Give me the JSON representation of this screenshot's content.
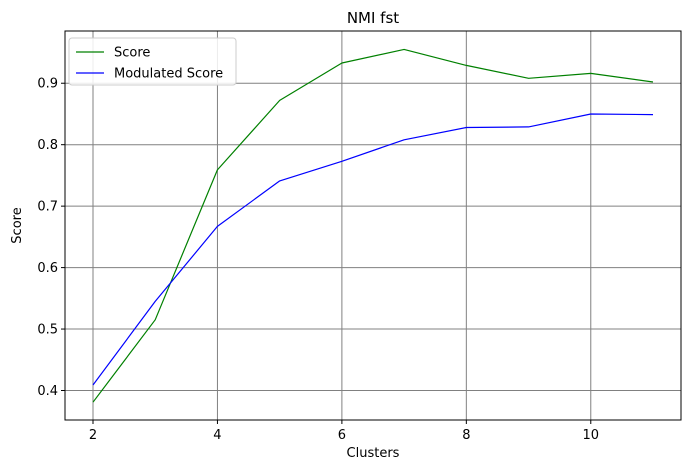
{
  "chart_data": {
    "type": "line",
    "title": "NMI fst",
    "xlabel": "Clusters",
    "ylabel": "Score",
    "x": [
      2,
      3,
      4,
      5,
      6,
      7,
      8,
      9,
      10,
      11
    ],
    "xlim": [
      1.55,
      11.45
    ],
    "ylim": [
      0.352,
      0.985
    ],
    "xticks": [
      2,
      4,
      6,
      8,
      10
    ],
    "yticks": [
      0.4,
      0.5,
      0.6,
      0.7,
      0.8,
      0.9
    ],
    "ytick_labels": [
      "0.4",
      "0.5",
      "0.6",
      "0.7",
      "0.8",
      "0.9"
    ],
    "grid": true,
    "grid_color": "#808080",
    "legend_position": "upper-left",
    "series": [
      {
        "name": "Score",
        "color": "#008000",
        "values": [
          0.381,
          0.515,
          0.759,
          0.872,
          0.933,
          0.955,
          0.929,
          0.908,
          0.916,
          0.902
        ]
      },
      {
        "name": "Modulated Score",
        "color": "#0000ff",
        "values": [
          0.409,
          0.545,
          0.667,
          0.741,
          0.773,
          0.808,
          0.828,
          0.829,
          0.85,
          0.849
        ]
      }
    ]
  }
}
